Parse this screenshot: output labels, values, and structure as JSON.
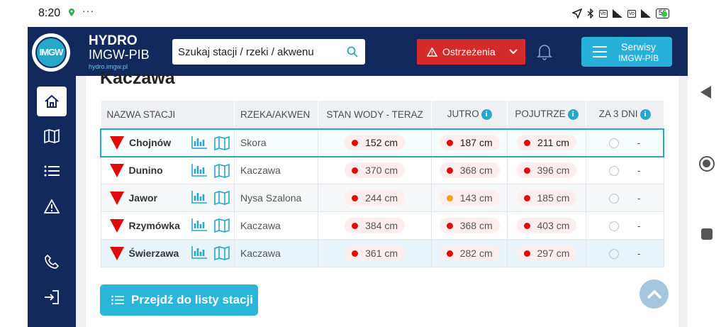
{
  "status_bar": {
    "time": "8:20",
    "dots": "···",
    "battery": "56"
  },
  "header": {
    "logo_text": "IMGW",
    "brand_line1": "HYDRO",
    "brand_line2": "IMGW-PIB",
    "brand_url": "hydro.imgw.pl",
    "search_placeholder": "Szukaj stacji / rzeki / akwenu",
    "warnings_label": "Ostrzeżenia",
    "services_line1": "Serwisy",
    "services_line2": "IMGW-PIB"
  },
  "sidebar": {
    "items": [
      {
        "icon": "home-icon"
      },
      {
        "icon": "map-icon"
      },
      {
        "icon": "list-icon"
      },
      {
        "icon": "warning-icon"
      },
      {
        "icon": "phone-icon"
      },
      {
        "icon": "login-icon"
      }
    ]
  },
  "main": {
    "river_title": "Kaczawa",
    "table": {
      "columns": [
        "NAZWA STACJI",
        "RZEKA/AKWEN",
        "STAN WODY - TERAZ",
        "JUTRO",
        "POJUTRZE",
        "ZA 3 DNI"
      ],
      "rows": [
        {
          "station": "Chojnów",
          "river": "Skora",
          "now": "152 cm",
          "tomorrow": "187 cm",
          "day_after": "211 cm",
          "in3": "-",
          "tomorrow_color": "red"
        },
        {
          "station": "Dunino",
          "river": "Kaczawa",
          "now": "370 cm",
          "tomorrow": "368 cm",
          "day_after": "396 cm",
          "in3": "-",
          "tomorrow_color": "red"
        },
        {
          "station": "Jawor",
          "river": "Nysa Szalona",
          "now": "244 cm",
          "tomorrow": "143 cm",
          "day_after": "185 cm",
          "in3": "-",
          "tomorrow_color": "orange"
        },
        {
          "station": "Rzymówka",
          "river": "Kaczawa",
          "now": "384 cm",
          "tomorrow": "368 cm",
          "day_after": "403 cm",
          "in3": "-",
          "tomorrow_color": "red"
        },
        {
          "station": "Świerzawa",
          "river": "Kaczawa",
          "now": "361 cm",
          "tomorrow": "282 cm",
          "day_after": "297 cm",
          "in3": "-",
          "tomorrow_color": "red"
        }
      ]
    },
    "list_button_label": "Przejdź do listy stacji"
  },
  "colors": {
    "navy": "#11295c",
    "accent": "#27b1d9",
    "warning_red": "#d42a2a",
    "alarm_red": "#e10a0a",
    "alert_orange": "#f3a11b"
  }
}
